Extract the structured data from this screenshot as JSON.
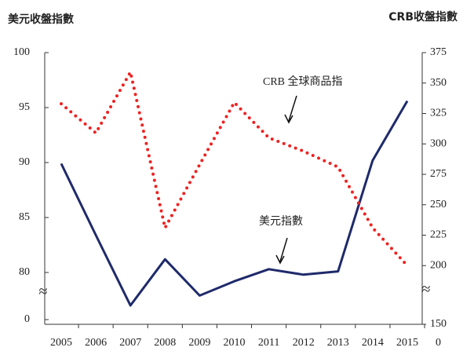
{
  "chart_data": {
    "type": "line",
    "ylabel": "美元收盤指數",
    "y2label": "CRB收盤指數",
    "categories": [
      "2005",
      "2006",
      "2007",
      "2008",
      "2009",
      "2010",
      "2011",
      "2012",
      "2013",
      "2014",
      "2015"
    ],
    "series": [
      {
        "name": "美元指數",
        "color": "#1f2a6b",
        "style": "solid",
        "values": [
          89.9,
          83.4,
          77.0,
          81.2,
          77.9,
          79.2,
          80.3,
          79.8,
          80.1,
          90.2,
          95.6
        ]
      },
      {
        "name": "CRB 全球商品指",
        "color": "#ee2222",
        "style": "dotted",
        "axis": "y2",
        "values": [
          333,
          309,
          359,
          231,
          283,
          334,
          305,
          294,
          281,
          231,
          200
        ]
      }
    ],
    "ylim": [
      0,
      100
    ],
    "ybreak": [
      0,
      76.5
    ],
    "yticks": [
      0,
      80,
      85,
      90,
      95,
      100
    ],
    "y2lim": [
      150,
      375
    ],
    "y2break": [
      150,
      165
    ],
    "y2ticks": [
      150,
      200,
      225,
      250,
      275,
      300,
      325,
      350,
      375
    ],
    "break_symbol": "≈",
    "corner_text": "0"
  }
}
